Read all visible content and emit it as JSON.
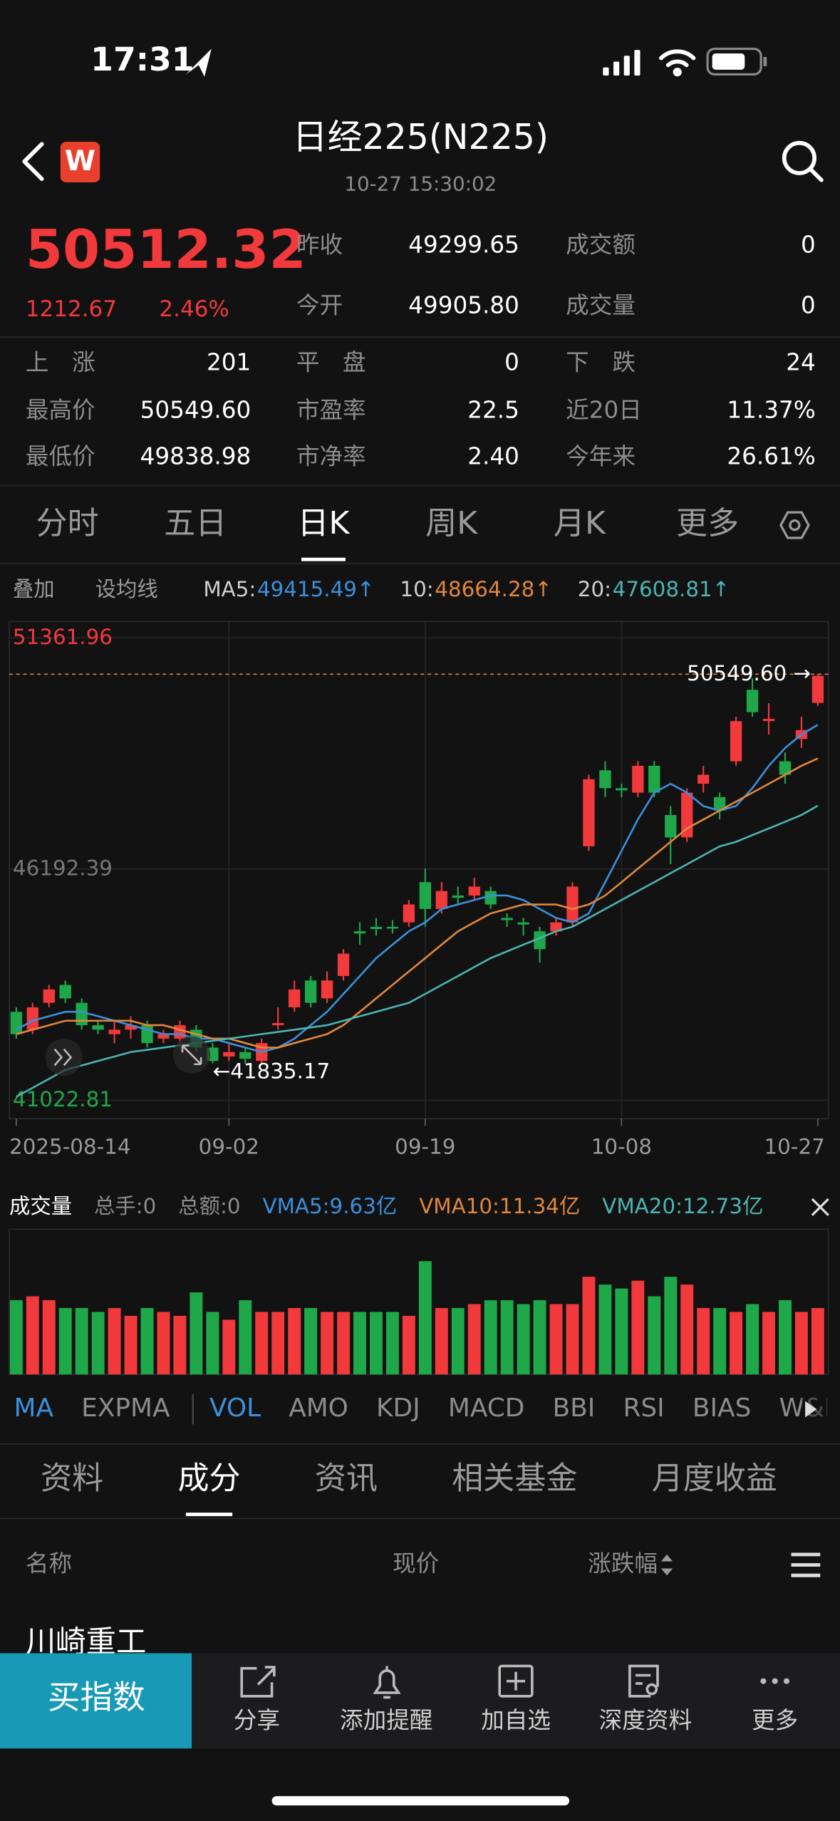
{
  "status_bar": {
    "time": "17:31"
  },
  "header": {
    "logo": "W",
    "title": "日经225(N225)",
    "timestamp": "10-27 15:30:02"
  },
  "quote": {
    "price": "50512.32",
    "change": "1212.67",
    "change_pct": "2.46%",
    "summary": [
      [
        "昨收",
        "49299.65",
        "成交额",
        "0"
      ],
      [
        "今开",
        "49905.80",
        "成交量",
        "0"
      ]
    ],
    "stats": [
      [
        "上　涨",
        "201",
        "平　盘",
        "0",
        "下　跌",
        "24"
      ],
      [
        "最高价",
        "50549.60",
        "市盈率",
        "22.5",
        "近20日",
        "11.37%"
      ],
      [
        "最低价",
        "49838.98",
        "市净率",
        "2.40",
        "今年来",
        "26.61%"
      ]
    ]
  },
  "period_tabs": {
    "items": [
      "分时",
      "五日",
      "日K",
      "周K",
      "月K",
      "更多"
    ],
    "active": 2
  },
  "overlay_buttons": [
    "叠加",
    "设均线"
  ],
  "chart_data": [
    {
      "type": "candlestick",
      "categories": [
        "2025-08-14",
        null,
        null,
        null,
        null,
        null,
        null,
        null,
        null,
        null,
        null,
        null,
        null,
        "09-02",
        null,
        null,
        null,
        null,
        null,
        null,
        null,
        null,
        null,
        null,
        null,
        "09-19",
        null,
        null,
        null,
        null,
        null,
        null,
        null,
        null,
        null,
        null,
        null,
        "10-08",
        null,
        null,
        null,
        null,
        null,
        null,
        null,
        null,
        null,
        null,
        null,
        "10-27"
      ],
      "open": [
        43000,
        42600,
        43200,
        43600,
        43200,
        42700,
        42500,
        42600,
        42700,
        42400,
        42400,
        42600,
        42200,
        42000,
        42100,
        41900,
        42700,
        43100,
        43700,
        43300,
        43800,
        44800,
        44900,
        44900,
        45000,
        45900,
        45300,
        45600,
        45600,
        45700,
        45100,
        45000,
        44800,
        44800,
        45000,
        46700,
        48400,
        48000,
        47900,
        48500,
        47400,
        46900,
        48100,
        47800,
        48600,
        50200,
        49500,
        48600,
        49100,
        49905.8
      ],
      "high": [
        43100,
        43200,
        43600,
        43700,
        43300,
        42800,
        42800,
        42900,
        42800,
        42600,
        42800,
        42700,
        42300,
        42300,
        42200,
        42400,
        43100,
        43700,
        43800,
        43900,
        44400,
        45000,
        45100,
        45050,
        45500,
        46200,
        45900,
        45800,
        46000,
        45800,
        45200,
        45100,
        44900,
        45100,
        45900,
        48300,
        48600,
        48100,
        48600,
        48600,
        47600,
        48000,
        48500,
        47900,
        49600,
        50450,
        49900,
        48800,
        49600,
        50549.6
      ],
      "low": [
        42400,
        42500,
        43100,
        43200,
        42600,
        42500,
        42300,
        42400,
        42200,
        42300,
        42300,
        42100,
        41850,
        41900,
        41835.17,
        41850,
        42600,
        43000,
        43100,
        43200,
        43700,
        44500,
        44700,
        44750,
        44900,
        44900,
        45200,
        45400,
        45500,
        45300,
        44900,
        44700,
        44100,
        44700,
        44900,
        46600,
        47800,
        47800,
        47800,
        47800,
        46300,
        46800,
        47900,
        47300,
        48500,
        49600,
        49200,
        48100,
        48900,
        49838.98
      ],
      "close": [
        42500,
        43100,
        43500,
        43300,
        42700,
        42600,
        42600,
        42700,
        42300,
        42500,
        42700,
        42200,
        41900,
        42100,
        41950,
        42300,
        42750,
        43500,
        43200,
        43700,
        44300,
        44750,
        44850,
        44870,
        45400,
        45300,
        45700,
        45550,
        45800,
        45400,
        45050,
        44950,
        44400,
        45000,
        45800,
        48200,
        48000,
        47950,
        48500,
        47900,
        46900,
        47900,
        48300,
        47500,
        49500,
        49700,
        49550,
        48300,
        49299.65,
        50512.32
      ],
      "up_color": "#f2393c",
      "down_color": "#1fa84a",
      "ylim": [
        41022.81,
        51361.96
      ],
      "yticks": [
        41022.81,
        46192.39,
        51361.96
      ],
      "grid": true,
      "series": [
        {
          "name": "MA5:",
          "color": "#3a90dc",
          "last_label": "49415.49↑",
          "values": [
            42600,
            42800,
            42900,
            43000,
            43000,
            42900,
            42800,
            42700,
            42600,
            42500,
            42500,
            42400,
            42400,
            42300,
            42200,
            42100,
            42200,
            42400,
            42700,
            43000,
            43400,
            43800,
            44200,
            44500,
            44800,
            45000,
            45300,
            45400,
            45500,
            45600,
            45600,
            45500,
            45300,
            45100,
            45000,
            45200,
            45900,
            46600,
            47300,
            47900,
            48100,
            47900,
            47600,
            47500,
            47600,
            48000,
            48500,
            48900,
            49200,
            49415.49
          ]
        },
        {
          "name": "10:",
          "color": "#e2863a",
          "last_label": "48664.28↑",
          "values": [
            42500,
            42600,
            42700,
            42800,
            42800,
            42800,
            42800,
            42800,
            42700,
            42700,
            42600,
            42500,
            42400,
            42400,
            42300,
            42200,
            42200,
            42300,
            42400,
            42500,
            42700,
            43000,
            43300,
            43600,
            43900,
            44200,
            44500,
            44800,
            45000,
            45200,
            45300,
            45400,
            45400,
            45400,
            45300,
            45400,
            45600,
            45900,
            46200,
            46500,
            46800,
            47100,
            47300,
            47500,
            47700,
            47900,
            48100,
            48300,
            48500,
            48664.28
          ]
        },
        {
          "name": "20:",
          "color": "#4cb4b4",
          "last_label": "47608.81↑",
          "values": [
            41100,
            41300,
            41500,
            41700,
            41800,
            41900,
            42000,
            42100,
            42150,
            42200,
            42250,
            42300,
            42350,
            42400,
            42450,
            42500,
            42550,
            42600,
            42650,
            42700,
            42800,
            42900,
            43000,
            43100,
            43200,
            43400,
            43600,
            43800,
            44000,
            44200,
            44350,
            44500,
            44650,
            44800,
            44900,
            45100,
            45300,
            45500,
            45700,
            45900,
            46100,
            46300,
            46500,
            46700,
            46800,
            46950,
            47100,
            47250,
            47400,
            47608.81
          ]
        }
      ],
      "annotations": [
        {
          "value": 50549.6,
          "label": "50549.60 →",
          "index": 49
        },
        {
          "value": 41835.17,
          "label": "←41835.17",
          "index": 14
        }
      ]
    },
    {
      "type": "bar",
      "title": "成交量",
      "stats": [
        "总手:0",
        "总额:0"
      ],
      "values": [
        9.5,
        10,
        9.5,
        8.5,
        8.5,
        8,
        8.5,
        7.5,
        8.5,
        8,
        7.5,
        10.5,
        8,
        7,
        9.5,
        8,
        8,
        8.5,
        8.5,
        8,
        8,
        8,
        8,
        8,
        7.5,
        14.5,
        8.5,
        8.5,
        9,
        9.5,
        9.5,
        9,
        9.5,
        9,
        9,
        12.5,
        11.5,
        11,
        12,
        10,
        12.5,
        11.5,
        8.5,
        8.5,
        8,
        9,
        8,
        9.5,
        8,
        8.5
      ],
      "ylim": [
        0,
        18
      ],
      "series": [
        {
          "name": "VMA5:",
          "color": "#3a90dc",
          "value_label": "9.63亿"
        },
        {
          "name": "VMA10:",
          "color": "#e2863a",
          "value_label": "11.34亿"
        },
        {
          "name": "VMA20:",
          "color": "#4cb4b4",
          "value_label": "12.73亿"
        }
      ]
    }
  ],
  "indicator_tabs": {
    "items": [
      "MA",
      "EXPMA",
      "VOL",
      "AMO",
      "KDJ",
      "MACD",
      "BBI",
      "RSI",
      "BIAS",
      "W&R"
    ],
    "active": [
      0,
      2
    ]
  },
  "section_tabs": {
    "items": [
      "资料",
      "成分",
      "资讯",
      "相关基金",
      "月度收益"
    ],
    "active": 1
  },
  "table": {
    "columns": [
      "名称",
      "现价",
      "涨跌幅"
    ],
    "rows": [
      [
        "川崎重工"
      ]
    ]
  },
  "bottom_bar": {
    "primary": "买指数",
    "items": [
      "分享",
      "添加提醒",
      "加自选",
      "深度资料",
      "更多"
    ]
  }
}
